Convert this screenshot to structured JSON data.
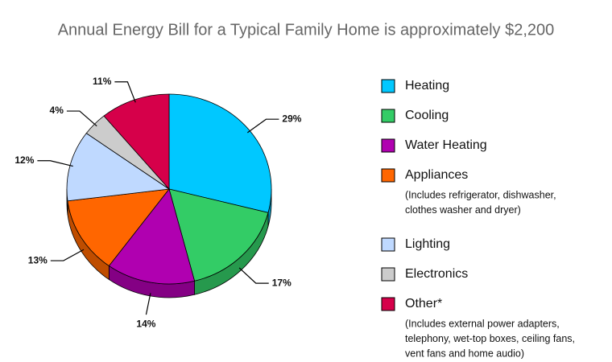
{
  "chart_data": {
    "type": "pie",
    "title": "Annual Energy Bill for a Typical Family Home is approximately $2,200",
    "categories": [
      "Heating",
      "Cooling",
      "Water Heating",
      "Appliances",
      "Lighting",
      "Electronics",
      "Other*"
    ],
    "values": [
      29,
      17,
      14,
      13,
      12,
      4,
      11
    ],
    "value_labels": [
      "29%",
      "17%",
      "14%",
      "13%",
      "12%",
      "4%",
      "11%"
    ],
    "colors": [
      "#00c8ff",
      "#33cc66",
      "#b000b0",
      "#ff6600",
      "#bfd9ff",
      "#cccccc",
      "#d6004a"
    ],
    "legend_notes": [
      null,
      null,
      null,
      [
        "(Includes refrigerator, dishwasher,",
        "clothes washer and dryer)"
      ],
      null,
      null,
      [
        "(Includes external power adapters,",
        "telephony, wet-top boxes, ceiling fans,",
        "vent fans and home audio)"
      ]
    ]
  }
}
